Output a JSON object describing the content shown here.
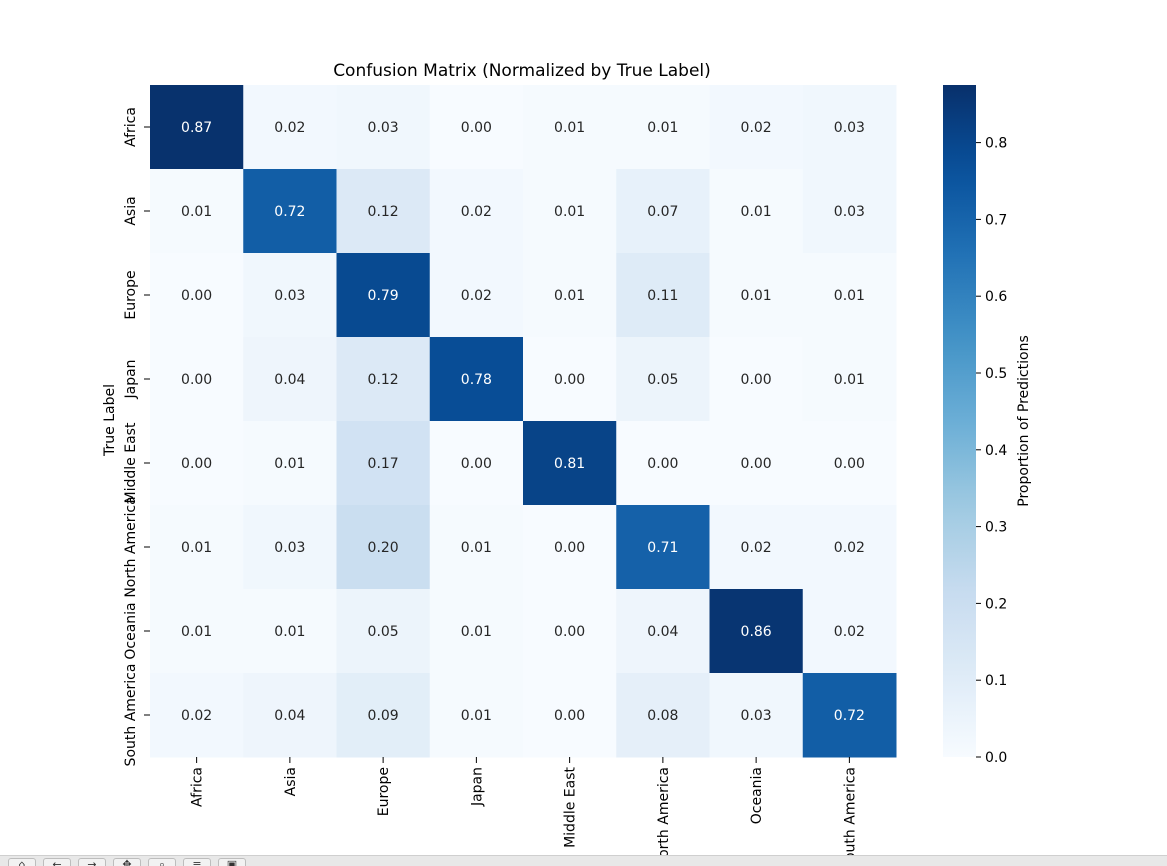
{
  "chart_data": {
    "type": "heatmap",
    "title": "Confusion Matrix (Normalized by True Label)",
    "ylabel": "True Label",
    "xlabel": "",
    "row_labels": [
      "Africa",
      "Asia",
      "Europe",
      "Japan",
      "Middle East",
      "North America",
      "Oceania",
      "South America"
    ],
    "col_labels": [
      "Africa",
      "Asia",
      "Europe",
      "Japan",
      "Middle East",
      "North America",
      "Oceania",
      "South America"
    ],
    "values": [
      [
        0.87,
        0.02,
        0.03,
        0.0,
        0.01,
        0.01,
        0.02,
        0.03
      ],
      [
        0.01,
        0.72,
        0.12,
        0.02,
        0.01,
        0.07,
        0.01,
        0.03
      ],
      [
        0.0,
        0.03,
        0.79,
        0.02,
        0.01,
        0.11,
        0.01,
        0.01
      ],
      [
        0.0,
        0.04,
        0.12,
        0.78,
        0.0,
        0.05,
        0.0,
        0.01
      ],
      [
        0.0,
        0.01,
        0.17,
        0.0,
        0.81,
        0.0,
        0.0,
        0.0
      ],
      [
        0.01,
        0.03,
        0.2,
        0.01,
        0.0,
        0.71,
        0.02,
        0.02
      ],
      [
        0.01,
        0.01,
        0.05,
        0.01,
        0.0,
        0.04,
        0.86,
        0.02
      ],
      [
        0.02,
        0.04,
        0.09,
        0.01,
        0.0,
        0.08,
        0.03,
        0.72
      ]
    ],
    "value_format": "0.00",
    "colormap": "Blues",
    "colorbar": {
      "label": "Proportion of Predictions",
      "range": [
        0.0,
        0.875
      ],
      "ticks": [
        0.0,
        0.1,
        0.2,
        0.3,
        0.4,
        0.5,
        0.6,
        0.7,
        0.8
      ],
      "tick_labels": [
        "0.0",
        "0.1",
        "0.2",
        "0.3",
        "0.4",
        "0.5",
        "0.6",
        "0.7",
        "0.8"
      ]
    },
    "grid": false,
    "legend": "none"
  },
  "toolbar": {
    "buttons": [
      {
        "name": "home-button",
        "icon": "home-icon",
        "glyph": "⌂"
      },
      {
        "name": "back-button",
        "icon": "arrow-left-icon",
        "glyph": "←"
      },
      {
        "name": "forward-button",
        "icon": "arrow-right-icon",
        "glyph": "→"
      },
      {
        "name": "pan-button",
        "icon": "move-icon",
        "glyph": "✥"
      },
      {
        "name": "zoom-button",
        "icon": "zoom-icon",
        "glyph": "⌕"
      },
      {
        "name": "configure-button",
        "icon": "sliders-icon",
        "glyph": "≡"
      },
      {
        "name": "save-button",
        "icon": "save-icon",
        "glyph": "▣"
      }
    ]
  }
}
